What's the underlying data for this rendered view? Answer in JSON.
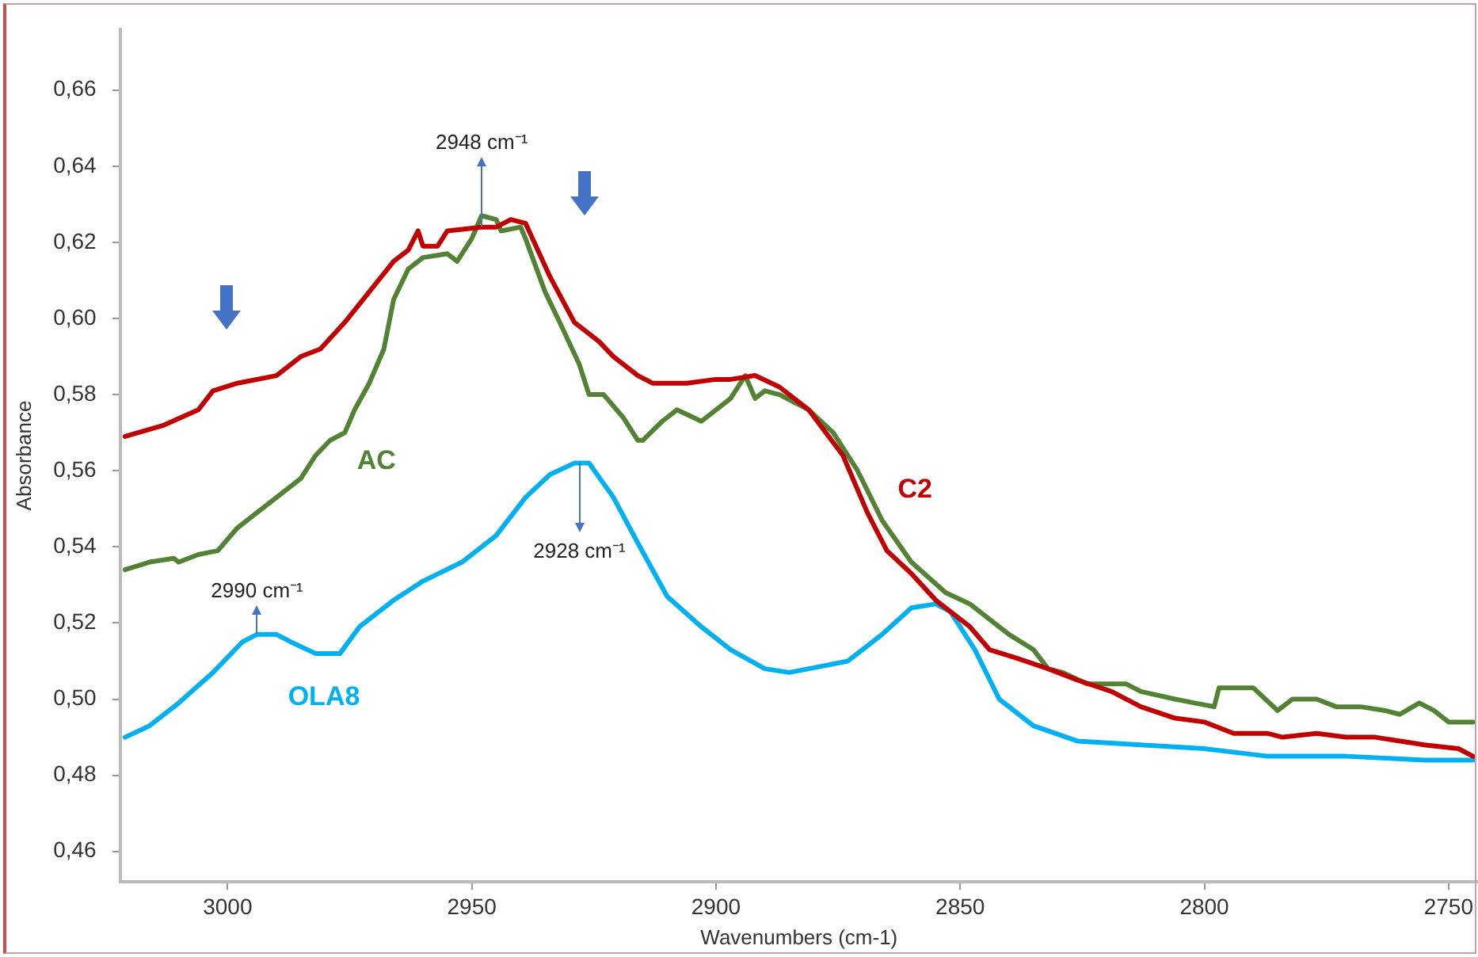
{
  "chart_data": {
    "type": "line",
    "xlabel": "Wavenumbers (cm-1)",
    "ylabel": "Absorbance",
    "xlim": [
      3022,
      2744
    ],
    "xticks": [
      3000,
      2950,
      2900,
      2850,
      2800,
      2750
    ],
    "ylim": [
      0.452,
      0.676
    ],
    "yticks": [
      {
        "value": 0.46,
        "label": "0,46"
      },
      {
        "value": 0.48,
        "label": "0,48"
      },
      {
        "value": 0.5,
        "label": "0,50"
      },
      {
        "value": 0.52,
        "label": "0,52"
      },
      {
        "value": 0.54,
        "label": "0,54"
      },
      {
        "value": 0.56,
        "label": "0,56"
      },
      {
        "value": 0.58,
        "label": "0,58"
      },
      {
        "value": 0.6,
        "label": "0,60"
      },
      {
        "value": 0.62,
        "label": "0,62"
      },
      {
        "value": 0.64,
        "label": "0,64"
      },
      {
        "value": 0.66,
        "label": "0,66"
      }
    ],
    "grid": false,
    "legend": false,
    "marker": "none",
    "line_style": "solid",
    "annotations": [
      {
        "text": "2948 cm⁻¹",
        "x": 2948,
        "y": 0.624
      },
      {
        "text": "2928 cm⁻¹",
        "x": 2928,
        "y": 0.562
      },
      {
        "text": "2990 cm⁻¹",
        "x": 2994,
        "y": 0.517
      }
    ],
    "series": [
      {
        "name": "C2",
        "color": "#c00000",
        "x": [
          3021,
          3013,
          3006,
          3003,
          2998,
          2990,
          2985,
          2981,
          2976,
          2971,
          2966,
          2963,
          2961,
          2960,
          2957,
          2955,
          2948,
          2945,
          2942,
          2939,
          2934,
          2929,
          2924,
          2921,
          2916,
          2913,
          2906,
          2900,
          2897,
          2892,
          2887,
          2881,
          2874,
          2869,
          2865,
          2860,
          2855,
          2848,
          2844,
          2839,
          2832,
          2826,
          2819,
          2813,
          2806,
          2800,
          2794,
          2787,
          2784,
          2777,
          2771,
          2765,
          2755,
          2748,
          2745
        ],
        "values": [
          0.569,
          0.572,
          0.576,
          0.581,
          0.583,
          0.585,
          0.59,
          0.592,
          0.599,
          0.607,
          0.615,
          0.618,
          0.623,
          0.619,
          0.619,
          0.623,
          0.624,
          0.624,
          0.626,
          0.625,
          0.611,
          0.599,
          0.594,
          0.59,
          0.585,
          0.583,
          0.583,
          0.584,
          0.584,
          0.585,
          0.582,
          0.576,
          0.564,
          0.549,
          0.539,
          0.533,
          0.526,
          0.519,
          0.513,
          0.511,
          0.508,
          0.505,
          0.502,
          0.498,
          0.495,
          0.494,
          0.491,
          0.491,
          0.49,
          0.491,
          0.49,
          0.49,
          0.488,
          0.487,
          0.485
        ]
      },
      {
        "name": "AC",
        "color": "#548235",
        "x": [
          3021,
          3016,
          3011,
          3010,
          3006,
          3002,
          2998,
          2994,
          2989,
          2985,
          2982,
          2979,
          2976,
          2974,
          2971,
          2968,
          2966,
          2963,
          2960,
          2955,
          2953,
          2950,
          2948,
          2945,
          2944,
          2940,
          2939,
          2935,
          2932,
          2928,
          2926,
          2923,
          2919,
          2916,
          2915,
          2911,
          2908,
          2903,
          2900,
          2897,
          2895,
          2894,
          2892,
          2890,
          2887,
          2884,
          2881,
          2876,
          2871,
          2866,
          2860,
          2853,
          2848,
          2845,
          2840,
          2835,
          2832,
          2829,
          2824,
          2821,
          2816,
          2813,
          2806,
          2802,
          2798,
          2797,
          2794,
          2790,
          2785,
          2782,
          2777,
          2773,
          2768,
          2763,
          2760,
          2756,
          2753,
          2750,
          2745
        ],
        "values": [
          0.534,
          0.536,
          0.537,
          0.536,
          0.538,
          0.539,
          0.545,
          0.549,
          0.554,
          0.558,
          0.564,
          0.568,
          0.57,
          0.576,
          0.583,
          0.592,
          0.605,
          0.613,
          0.616,
          0.617,
          0.615,
          0.621,
          0.627,
          0.626,
          0.623,
          0.624,
          0.621,
          0.607,
          0.599,
          0.588,
          0.58,
          0.58,
          0.574,
          0.568,
          0.568,
          0.573,
          0.576,
          0.573,
          0.576,
          0.579,
          0.583,
          0.585,
          0.579,
          0.581,
          0.58,
          0.578,
          0.576,
          0.57,
          0.56,
          0.547,
          0.536,
          0.528,
          0.525,
          0.522,
          0.517,
          0.513,
          0.508,
          0.507,
          0.504,
          0.504,
          0.504,
          0.502,
          0.5,
          0.499,
          0.498,
          0.503,
          0.503,
          0.503,
          0.497,
          0.5,
          0.5,
          0.498,
          0.498,
          0.497,
          0.496,
          0.499,
          0.497,
          0.494,
          0.494
        ]
      },
      {
        "name": "OLA8",
        "color": "#00b0f0",
        "x": [
          3021,
          3016,
          3010,
          3003,
          2997,
          2994,
          2990,
          2987,
          2982,
          2977,
          2973,
          2966,
          2960,
          2952,
          2945,
          2939,
          2934,
          2929,
          2926,
          2921,
          2916,
          2910,
          2903,
          2897,
          2890,
          2885,
          2881,
          2873,
          2866,
          2860,
          2855,
          2852,
          2847,
          2842,
          2835,
          2826,
          2813,
          2800,
          2787,
          2771,
          2755,
          2745
        ],
        "values": [
          0.49,
          0.493,
          0.499,
          0.507,
          0.515,
          0.517,
          0.517,
          0.515,
          0.512,
          0.512,
          0.519,
          0.526,
          0.531,
          0.536,
          0.543,
          0.553,
          0.559,
          0.562,
          0.562,
          0.553,
          0.541,
          0.527,
          0.519,
          0.513,
          0.508,
          0.507,
          0.508,
          0.51,
          0.517,
          0.524,
          0.525,
          0.523,
          0.513,
          0.5,
          0.493,
          0.489,
          0.488,
          0.487,
          0.485,
          0.485,
          0.484,
          0.484
        ]
      }
    ]
  }
}
